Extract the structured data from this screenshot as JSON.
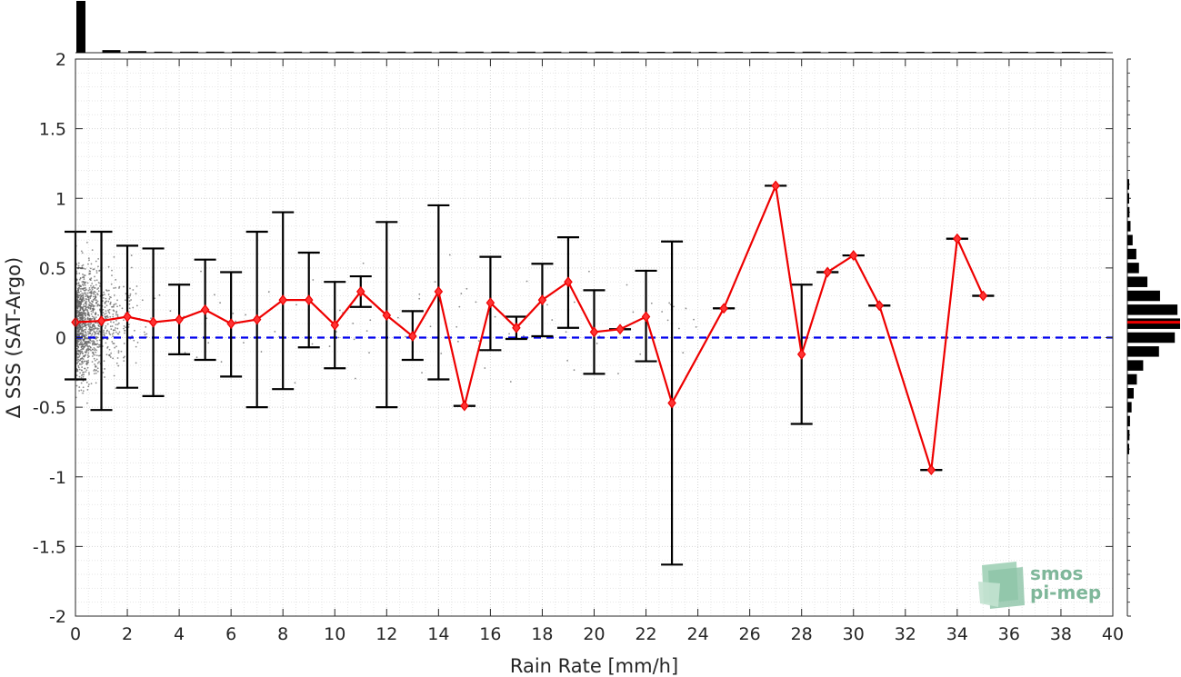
{
  "chart_data": {
    "type": "line",
    "xlabel": "Rain Rate [mm/h]",
    "ylabel": "Δ SSS (SAT-Argo)",
    "xlim": [
      0,
      40
    ],
    "ylim": [
      -2,
      2
    ],
    "xticks": [
      0,
      2,
      4,
      6,
      8,
      10,
      12,
      14,
      16,
      18,
      20,
      22,
      24,
      26,
      28,
      30,
      32,
      34,
      36,
      38,
      40
    ],
    "yticks": [
      2,
      1.5,
      1,
      0.5,
      0,
      -0.5,
      -1,
      -1.5,
      -2
    ],
    "grid": true,
    "zero_line": {
      "y": 0,
      "color": "#0000ee",
      "style": "dashed"
    },
    "series": [
      {
        "color": "#ee0000",
        "x": [
          0,
          1,
          2,
          3,
          4,
          5,
          6,
          7,
          8,
          9,
          10,
          11,
          12,
          13,
          14,
          15,
          16,
          17,
          18,
          19,
          20,
          21,
          22,
          23,
          25,
          27,
          28,
          29,
          30,
          31,
          33,
          34,
          35
        ],
        "values": [
          0.11,
          0.12,
          0.15,
          0.11,
          0.13,
          0.2,
          0.1,
          0.13,
          0.27,
          0.27,
          0.09,
          0.33,
          0.16,
          0.01,
          0.33,
          -0.49,
          0.25,
          0.07,
          0.27,
          0.4,
          0.04,
          0.06,
          0.15,
          -0.47,
          0.21,
          1.09,
          -0.12,
          0.47,
          0.59,
          0.23,
          -0.95,
          0.71,
          0.3
        ],
        "err_low": [
          -0.3,
          -0.52,
          -0.36,
          -0.42,
          -0.12,
          -0.16,
          -0.28,
          -0.5,
          -0.37,
          -0.07,
          -0.22,
          0.22,
          -0.5,
          -0.16,
          -0.3,
          -0.49,
          -0.09,
          -0.01,
          0.01,
          0.07,
          -0.26,
          0.06,
          -0.17,
          -1.63,
          0.21,
          1.09,
          -0.62,
          0.47,
          0.59,
          0.23,
          -0.95,
          0.71,
          0.3
        ],
        "err_high": [
          0.76,
          0.76,
          0.66,
          0.64,
          0.38,
          0.56,
          0.47,
          0.76,
          0.9,
          0.61,
          0.4,
          0.44,
          0.83,
          0.19,
          0.95,
          -0.49,
          0.58,
          0.15,
          0.53,
          0.72,
          0.34,
          0.06,
          0.48,
          0.69,
          0.21,
          1.09,
          0.38,
          0.47,
          0.59,
          0.23,
          -0.95,
          0.71,
          0.3
        ]
      }
    ],
    "top_histogram": {
      "bins_x": [
        0,
        1,
        2,
        3,
        4,
        5,
        6,
        7,
        8,
        9,
        10,
        11,
        12,
        13,
        14,
        15,
        16,
        17,
        18,
        19,
        20,
        21,
        22,
        23,
        24,
        25,
        26,
        27,
        28,
        29,
        30,
        31,
        32,
        33,
        34,
        35,
        36,
        37,
        38,
        39,
        40
      ],
      "counts": [
        1.0,
        0.05,
        0.03,
        0.02,
        0.02,
        0.02,
        0.02,
        0.02,
        0.02,
        0.02,
        0.02,
        0.02,
        0.02,
        0.02,
        0.02,
        0.02,
        0.02,
        0.02,
        0.02,
        0.02,
        0.02,
        0.02,
        0.01,
        0.02,
        0.01,
        0.01,
        0.01,
        0.01,
        0.02,
        0.01,
        0.01,
        0.01,
        0.01,
        0.01,
        0.01,
        0.01,
        0.01,
        0.01,
        0.01,
        0.01
      ]
    },
    "right_histogram": {
      "bin_centers": [
        1.1,
        1.0,
        0.9,
        0.8,
        0.7,
        0.6,
        0.5,
        0.4,
        0.3,
        0.2,
        0.1,
        0.0,
        -0.1,
        -0.2,
        -0.3,
        -0.4,
        -0.5,
        -0.6,
        -0.7,
        -0.8
      ],
      "counts": [
        0.03,
        0.03,
        0.04,
        0.06,
        0.1,
        0.17,
        0.22,
        0.38,
        0.62,
        0.95,
        1.0,
        0.9,
        0.6,
        0.3,
        0.18,
        0.12,
        0.08,
        0.05,
        0.04,
        0.03
      ],
      "median": 0.11,
      "median_color": "#ee0000"
    },
    "scatter_color": "#666666"
  },
  "logo": {
    "line1": "smos",
    "line2": "pi-mep"
  }
}
